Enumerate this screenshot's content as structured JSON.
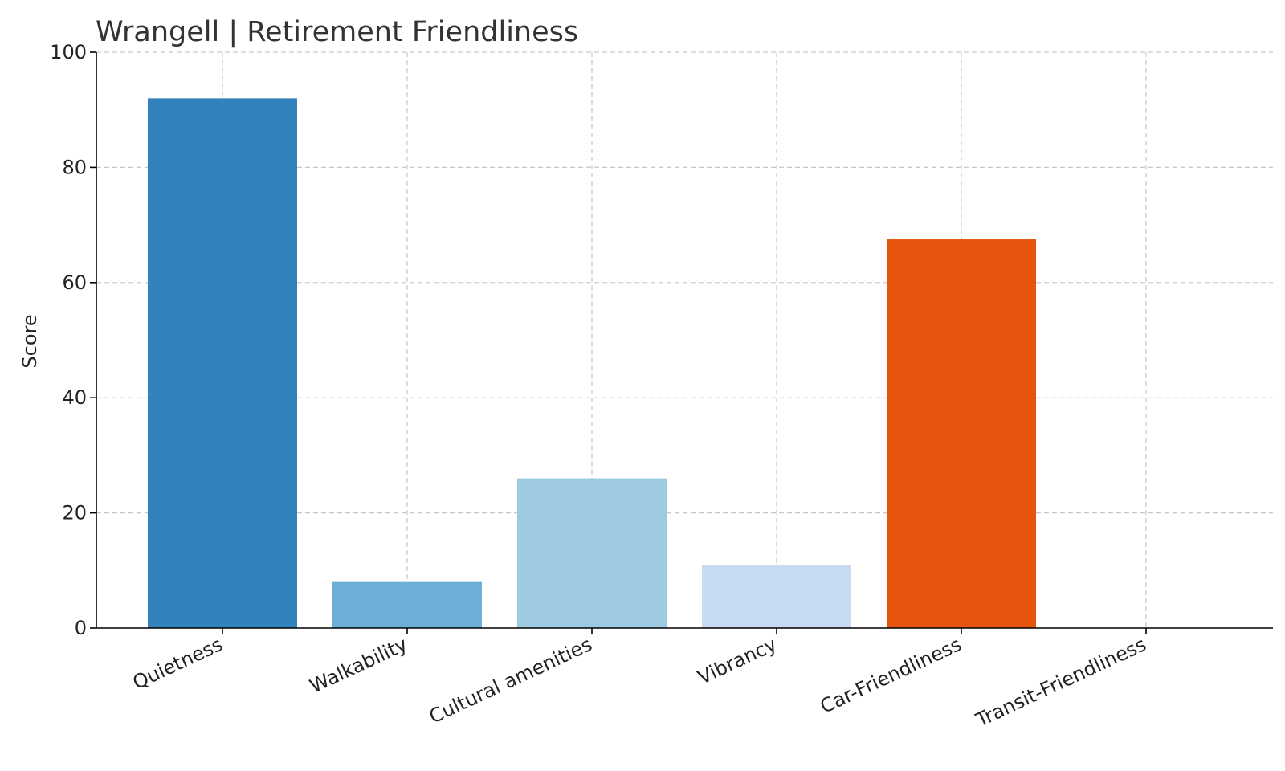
{
  "chart_data": {
    "type": "bar",
    "title": "Wrangell | Retirement Friendliness",
    "xlabel": "",
    "ylabel": "Score",
    "ylim": [
      0,
      100
    ],
    "yticks": [
      0,
      20,
      40,
      60,
      80,
      100
    ],
    "grid": true,
    "categories": [
      "Quietness",
      "Walkability",
      "Cultural amenities",
      "Vibrancy",
      "Car-Friendliness",
      "Transit-Friendliness"
    ],
    "values": [
      92,
      8,
      26,
      11,
      67.5,
      0
    ],
    "colors": [
      "#3182bd",
      "#6baed6",
      "#9ecae1",
      "#c6dbef",
      "#e6550d",
      "#fd8d3c"
    ]
  }
}
